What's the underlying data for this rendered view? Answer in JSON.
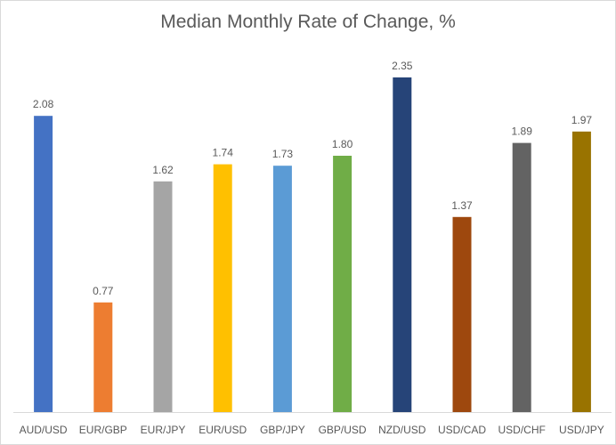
{
  "chart_data": {
    "type": "bar",
    "title": "Median Monthly Rate of Change, %",
    "xlabel": "",
    "ylabel": "",
    "ylim": [
      0,
      2.5
    ],
    "grid": false,
    "legend": "none",
    "categories": [
      "AUD/USD",
      "EUR/GBP",
      "EUR/JPY",
      "EUR/USD",
      "GBP/JPY",
      "GBP/USD",
      "NZD/USD",
      "USD/CAD",
      "USD/CHF",
      "USD/JPY"
    ],
    "values": [
      2.08,
      0.77,
      1.62,
      1.74,
      1.73,
      1.8,
      2.35,
      1.37,
      1.89,
      1.97
    ],
    "data_labels": [
      "2.08",
      "0.77",
      "1.62",
      "1.74",
      "1.73",
      "1.80",
      "2.35",
      "1.37",
      "1.89",
      "1.97"
    ],
    "colors": [
      "#4472C4",
      "#ED7D31",
      "#A5A5A5",
      "#FFC000",
      "#5B9BD5",
      "#70AD47",
      "#264478",
      "#9E480E",
      "#636363",
      "#997300"
    ]
  }
}
